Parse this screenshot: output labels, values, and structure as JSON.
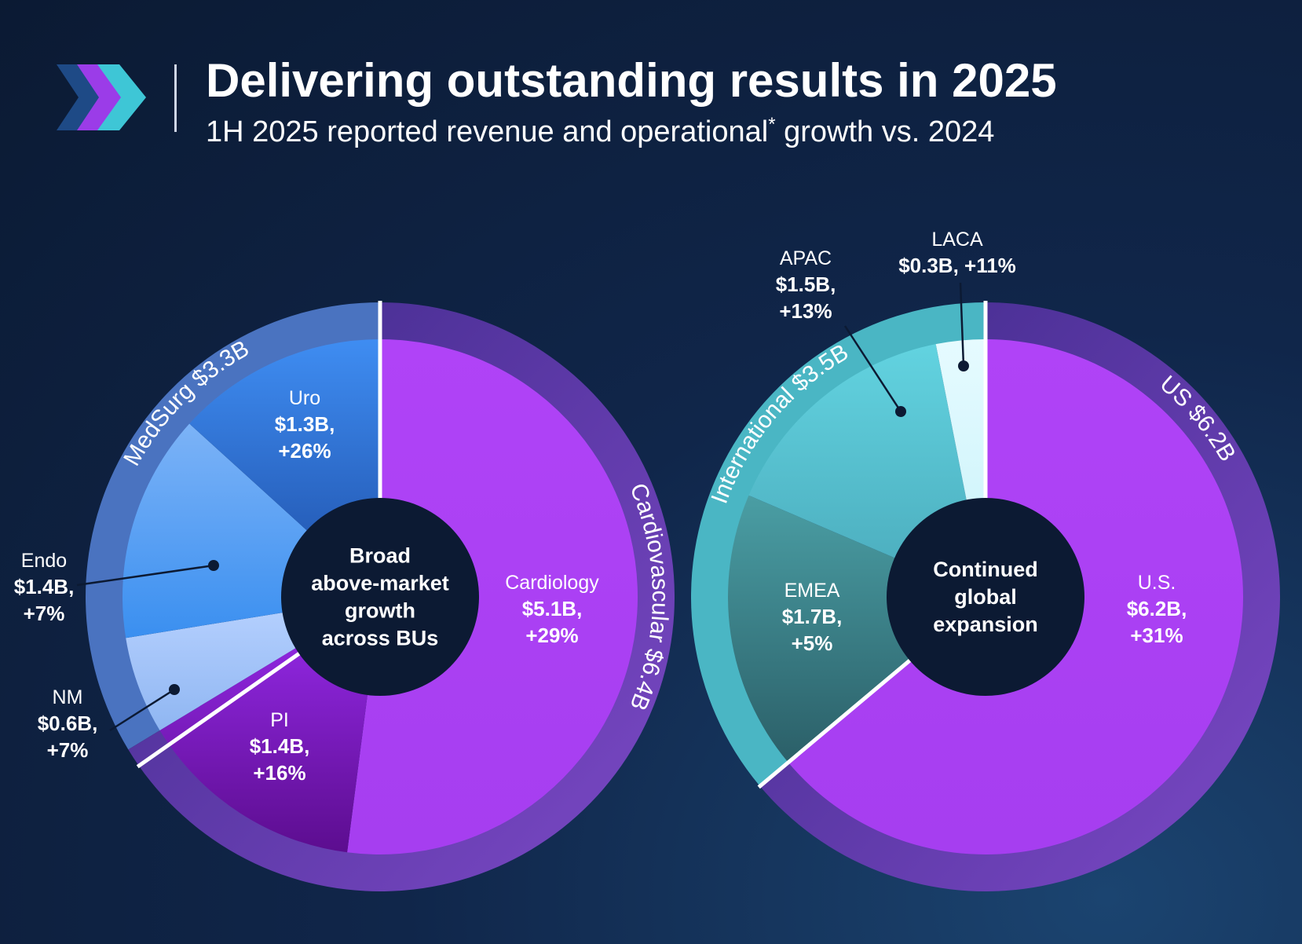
{
  "header": {
    "title": "Delivering outstanding results in 2025",
    "subtitle_main": "1H 2025 reported revenue and operational",
    "subtitle_sup": "*",
    "subtitle_tail": " growth vs. 2024"
  },
  "colors": {
    "purple": "#ad41f5",
    "purple_ring": "#6a3bbd",
    "blue_ring": "#4a73c0",
    "teal_ring": "#4ab6c4",
    "center": "#0c1a33"
  },
  "chart_data": [
    {
      "type": "pie",
      "title": "",
      "center_label": [
        "Broad",
        "above-market",
        "growth",
        "across BUs"
      ],
      "groups": [
        {
          "name": "MedSurg",
          "label": "MedSurg $3.3B",
          "value": 3.3,
          "color": "#4a73c0"
        },
        {
          "name": "Cardiovascular",
          "label": "Cardiovascular $6.4B",
          "value": 6.4,
          "color": "#6a3bbd"
        }
      ],
      "slices": [
        {
          "group": "Cardiovascular",
          "name": "Cardiology",
          "value_label": "$5.1B,",
          "growth": "+29%",
          "value": 5.1
        },
        {
          "group": "Cardiovascular",
          "name": "PI",
          "value_label": "$1.4B,",
          "growth": "+16%",
          "value": 1.4
        },
        {
          "group": "MedSurg",
          "name": "NM",
          "value_label": "$0.6B,",
          "growth": "+7%",
          "value": 0.6
        },
        {
          "group": "MedSurg",
          "name": "Endo",
          "value_label": "$1.4B,",
          "growth": "+7%",
          "value": 1.4
        },
        {
          "group": "MedSurg",
          "name": "Uro",
          "value_label": "$1.3B,",
          "growth": "+26%",
          "value": 1.3
        }
      ]
    },
    {
      "type": "pie",
      "title": "",
      "center_label": [
        "Continued",
        "global",
        "expansion"
      ],
      "groups": [
        {
          "name": "International",
          "label": "International $3.5B",
          "value": 3.5,
          "color": "#4ab6c4"
        },
        {
          "name": "US",
          "label": "US $6.2B",
          "value": 6.2,
          "color": "#6a3bbd"
        }
      ],
      "slices": [
        {
          "group": "US",
          "name": "U.S.",
          "value_label": "$6.2B,",
          "growth": "+31%",
          "value": 6.2
        },
        {
          "group": "International",
          "name": "EMEA",
          "value_label": "$1.7B,",
          "growth": "+5%",
          "value": 1.7
        },
        {
          "group": "International",
          "name": "APAC",
          "value_label": "$1.5B,",
          "growth": "+13%",
          "value": 1.5
        },
        {
          "group": "International",
          "name": "LACA",
          "value_label": "$0.3B, +11%",
          "growth": "",
          "value": 0.3
        }
      ]
    }
  ]
}
